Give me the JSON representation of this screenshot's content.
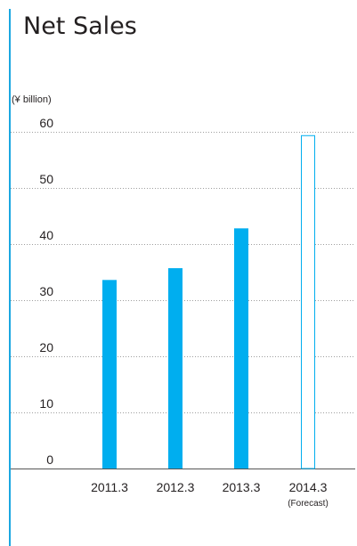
{
  "title": "Net Sales",
  "unit_label": "(¥ billion)",
  "colors": {
    "accent": "#1aa7e1",
    "bar": "#00aeef",
    "grid": "#9e9e9e",
    "axis": "#555555"
  },
  "chart_data": {
    "type": "bar",
    "title": "Net Sales",
    "ylabel": "(¥ billion)",
    "xlabel": "",
    "ylim": [
      0,
      60
    ],
    "yticks": [
      0,
      10,
      20,
      30,
      40,
      50,
      60
    ],
    "grid": true,
    "categories": [
      "2011.3",
      "2012.3",
      "2013.3",
      "2014.3"
    ],
    "category_sublabels": [
      "",
      "",
      "",
      "(Forecast)"
    ],
    "values": [
      33.6,
      35.7,
      42.8,
      59.4
    ],
    "forecast": [
      false,
      false,
      false,
      true
    ]
  }
}
